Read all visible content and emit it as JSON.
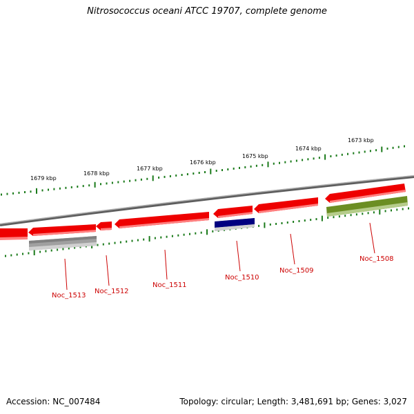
{
  "title": "Nitrosococcus oceani ATCC 19707, complete genome",
  "footer": {
    "accession": "Accession: NC_007484",
    "summary": "Topology: circular; Length: 3,481,691 bp; Genes: 3,027"
  },
  "colors": {
    "background": "#ffffff",
    "backbone": "#7f7f7f",
    "ticks": "#1a7a1a",
    "gene_default": "#ee0000",
    "gene_highlight_blue": "#000080",
    "gene_highlight_olive": "#6b8e23",
    "gene_grey": "#a0a0a0",
    "label": "#cc0000"
  },
  "scale": {
    "kbp_labels": [
      "1679 kbp",
      "1678 kbp",
      "1677 kbp",
      "1676 kbp",
      "1675 kbp",
      "1674 kbp",
      "1673 kbp"
    ]
  },
  "genes": [
    {
      "label": "Noc_1513"
    },
    {
      "label": "Noc_1512"
    },
    {
      "label": "Noc_1511"
    },
    {
      "label": "Noc_1510"
    },
    {
      "label": "Noc_1509"
    },
    {
      "label": "Noc_1508"
    }
  ]
}
